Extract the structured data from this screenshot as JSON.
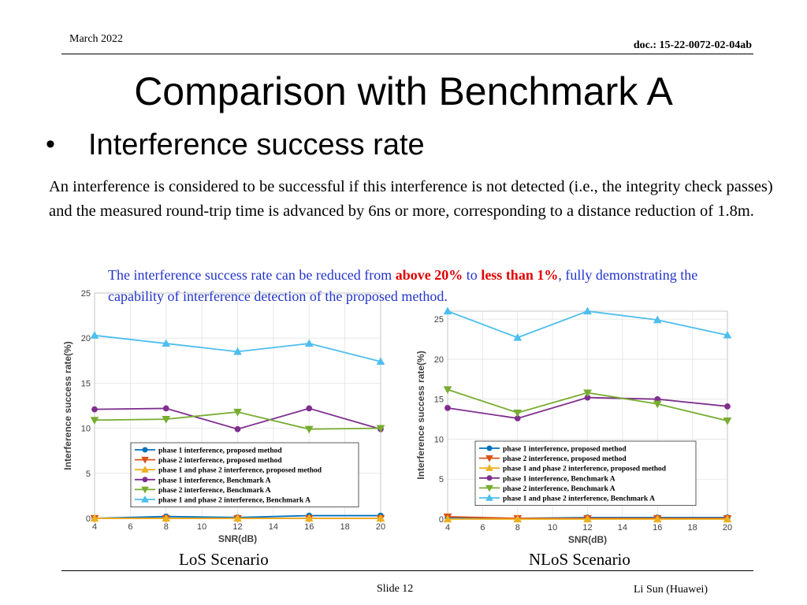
{
  "header": {
    "date": "March 2022",
    "doc_id": "doc.: 15-22-0072-02-04ab"
  },
  "title": "Comparison with Benchmark A",
  "bullet": {
    "symbol": "•",
    "text": "Interference success rate"
  },
  "paragraph": "An interference is considered to be successful if this interference is not detected (i.e., the integrity check passes) and the measured round-trip time is advanced by 6ns or more, corresponding to a distance reduction of 1.8m.",
  "note": {
    "part1": "The interference success rate can be reduced from ",
    "highlight1": "above 20%",
    "part2": " to ",
    "highlight2": "less than 1%",
    "part3": ", fully demonstrating the capability of interference detection of the proposed method."
  },
  "colors": {
    "note_text": "#2233cc",
    "highlight": "#e00000",
    "series": [
      "#0072bd",
      "#d95319",
      "#edb120",
      "#7e2f8e",
      "#77ac30",
      "#4dbeee"
    ]
  },
  "captions": {
    "left": "LoS Scenario",
    "right": "NLoS Scenario"
  },
  "footer": {
    "slide": "Slide 12",
    "author": "Li Sun (Huawei)"
  },
  "chart_data": [
    {
      "type": "line",
      "caption": "LoS Scenario",
      "xlabel": "SNR(dB)",
      "ylabel": "Interference success rate(%)",
      "xlim": [
        4,
        20
      ],
      "ylim": [
        0,
        25
      ],
      "xticks": [
        4,
        6,
        8,
        10,
        12,
        14,
        16,
        18,
        20
      ],
      "yticks": [
        0,
        5,
        10,
        15,
        20,
        25
      ],
      "grid": true,
      "legend_position": "bottom-left",
      "x": [
        4,
        8,
        12,
        16,
        20
      ],
      "series": [
        {
          "name": "phase 1 interference, proposed method",
          "marker": "circle",
          "values": [
            0,
            0.2,
            0.1,
            0.3,
            0.3
          ]
        },
        {
          "name": "phase 2 interference, proposed method",
          "marker": "triangle-down",
          "values": [
            0,
            0,
            0,
            0,
            0
          ]
        },
        {
          "name": "phase 1 and phase 2 interference, proposed method",
          "marker": "triangle-up",
          "values": [
            0,
            0,
            0,
            0,
            0
          ]
        },
        {
          "name": "phase 1 interference, Benchmark A",
          "marker": "circle",
          "values": [
            12.1,
            12.2,
            9.9,
            12.2,
            9.9
          ]
        },
        {
          "name": "phase 2 interference, Benchmark A",
          "marker": "triangle-down",
          "values": [
            10.9,
            11.0,
            11.8,
            9.9,
            10.0
          ]
        },
        {
          "name": "phase 1 and phase 2 interference, Benchmark A",
          "marker": "triangle-up",
          "values": [
            20.3,
            19.4,
            18.5,
            19.4,
            17.4
          ]
        }
      ]
    },
    {
      "type": "line",
      "caption": "NLoS Scenario",
      "xlabel": "SNR(dB)",
      "ylabel": "Interference success rate(%)",
      "xlim": [
        4,
        20
      ],
      "ylim": [
        0,
        26
      ],
      "xticks": [
        4,
        6,
        8,
        10,
        12,
        14,
        16,
        18,
        20
      ],
      "yticks": [
        0,
        5,
        10,
        15,
        20,
        25
      ],
      "grid": true,
      "legend_position": "middle-right",
      "x": [
        4,
        8,
        12,
        16,
        20
      ],
      "series": [
        {
          "name": "phase 1 interference, proposed method",
          "marker": "circle",
          "values": [
            0.2,
            0.1,
            0.2,
            0.2,
            0.2
          ]
        },
        {
          "name": "phase 2 interference, proposed method",
          "marker": "triangle-down",
          "values": [
            0.3,
            0.1,
            0.1,
            0.1,
            0.1
          ]
        },
        {
          "name": "phase 1 and phase 2 interference, proposed method",
          "marker": "triangle-up",
          "values": [
            0,
            0,
            0,
            0,
            0
          ]
        },
        {
          "name": "phase 1 interference, Benchmark A",
          "marker": "circle",
          "values": [
            13.9,
            12.6,
            15.2,
            15.0,
            14.1
          ]
        },
        {
          "name": "phase 2 interference, Benchmark A",
          "marker": "triangle-down",
          "values": [
            16.2,
            13.3,
            15.8,
            14.4,
            12.3
          ]
        },
        {
          "name": "phase 1 and phase 2 interference, Benchmark A",
          "marker": "triangle-up",
          "values": [
            26.0,
            22.7,
            26.0,
            24.9,
            23.0
          ]
        }
      ]
    }
  ]
}
